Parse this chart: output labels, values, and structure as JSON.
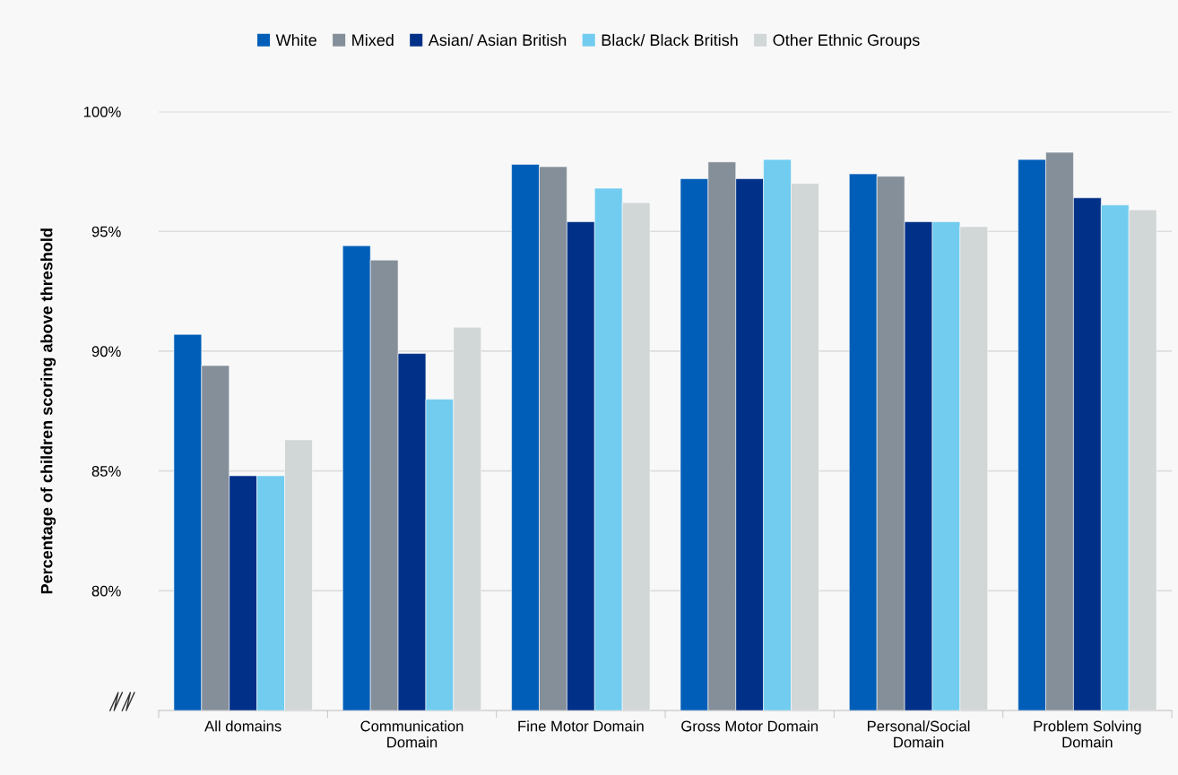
{
  "chart_data": {
    "type": "bar",
    "ylabel": "Percentage of children scoring above threshold",
    "categories": [
      "All domains",
      "Communication\nDomain",
      "Fine Motor Domain",
      "Gross Motor Domain",
      "Personal/Social\nDomain",
      "Problem Solving\nDomain"
    ],
    "series": [
      {
        "name": "White",
        "color": "#005eb8",
        "values": [
          90.7,
          94.4,
          97.8,
          97.2,
          97.4,
          98.0
        ]
      },
      {
        "name": "Mixed",
        "color": "#858f9a",
        "values": [
          89.4,
          93.8,
          97.7,
          97.9,
          97.3,
          98.3
        ]
      },
      {
        "name": "Asian/ Asian British",
        "color": "#003087",
        "values": [
          84.8,
          89.9,
          95.4,
          97.2,
          95.4,
          96.4
        ]
      },
      {
        "name": "Black/ Black British",
        "color": "#71ccef",
        "values": [
          84.8,
          88.0,
          96.8,
          98.0,
          95.4,
          96.1
        ]
      },
      {
        "name": "Other Ethnic Groups",
        "color": "#d1d6d6",
        "values": [
          86.3,
          91.0,
          96.2,
          97.0,
          95.2,
          95.9
        ]
      }
    ],
    "ylim": [
      75,
      100
    ],
    "yticks": [
      {
        "value": 80,
        "label": "80%"
      },
      {
        "value": 85,
        "label": "85%"
      },
      {
        "value": 90,
        "label": "90%"
      },
      {
        "value": 95,
        "label": "95%"
      },
      {
        "value": 100,
        "label": "100%"
      }
    ],
    "grid": "y",
    "legend": "top"
  }
}
